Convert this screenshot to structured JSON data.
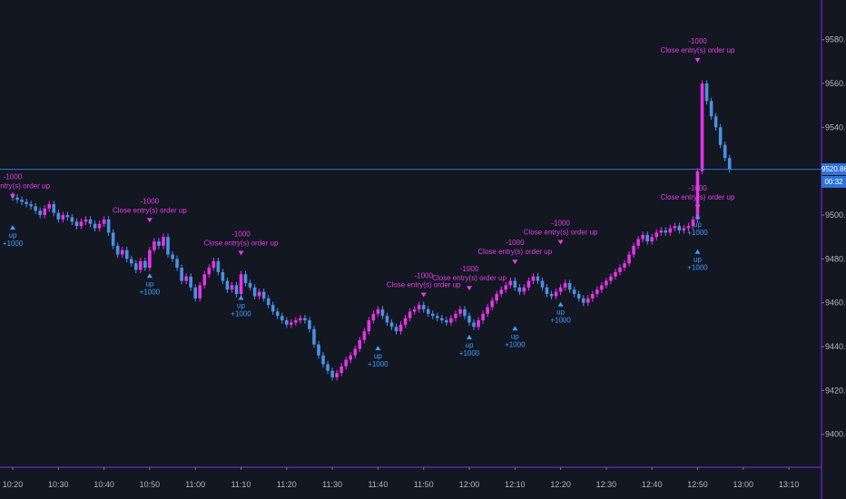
{
  "colors": {
    "background": "#131722",
    "candle_up": "#e633e6",
    "candle_down": "#4a90e2",
    "last_price_line": "#2e73d8",
    "axis_line": "#8a2be2",
    "long_label": "#3aa0ff",
    "short_label": "#e040e0",
    "arrow_orange": "#c7791a",
    "arrow_green": "#2a8a4a",
    "dot_purple": "#a52a8a"
  },
  "last_price": {
    "label": "9520.86",
    "countdown": "00:32",
    "value": 9520.86
  },
  "chart_data": {
    "type": "candlestick",
    "title": "",
    "xlabel": "",
    "ylabel": "",
    "ylim": [
      9385,
      9596
    ],
    "grid": false,
    "y_ticks": [
      {
        "value": 9580,
        "label": "9580.00"
      },
      {
        "value": 9560,
        "label": "9560.00"
      },
      {
        "value": 9540,
        "label": "9540.00"
      },
      {
        "value": 9500,
        "label": "9500.00"
      },
      {
        "value": 9480,
        "label": "9480.00"
      },
      {
        "value": 9460,
        "label": "9460.00"
      },
      {
        "value": 9440,
        "label": "9440.00"
      },
      {
        "value": 9420,
        "label": "9420.00"
      },
      {
        "value": 9400,
        "label": "9400.00"
      }
    ],
    "x_ticks": [
      {
        "value": 0,
        "label": "10:20"
      },
      {
        "value": 10,
        "label": "10:30"
      },
      {
        "value": 20,
        "label": "10:40"
      },
      {
        "value": 30,
        "label": "10:50"
      },
      {
        "value": 40,
        "label": "11:00"
      },
      {
        "value": 50,
        "label": "11:10"
      },
      {
        "value": 60,
        "label": "11:20"
      },
      {
        "value": 70,
        "label": "11:30"
      },
      {
        "value": 80,
        "label": "11:40"
      },
      {
        "value": 90,
        "label": "11:50"
      },
      {
        "value": 100,
        "label": "12:00"
      },
      {
        "value": 110,
        "label": "12:10"
      },
      {
        "value": 120,
        "label": "12:20"
      },
      {
        "value": 130,
        "label": "12:30"
      },
      {
        "value": 140,
        "label": "12:40"
      },
      {
        "value": 150,
        "label": "12:50"
      },
      {
        "value": 160,
        "label": "13:00"
      },
      {
        "value": 170,
        "label": "13:10"
      }
    ],
    "close_series": [
      9508,
      9507,
      9506,
      9505,
      9504,
      9502,
      9500,
      9503,
      9505,
      9501,
      9498,
      9500,
      9499,
      9497,
      9495,
      9497,
      9498,
      9496,
      9494,
      9496,
      9498,
      9492,
      9486,
      9482,
      9484,
      9480,
      9478,
      9475,
      9479,
      9476,
      9484,
      9488,
      9486,
      9490,
      9482,
      9480,
      9476,
      9470,
      9472,
      9467,
      9462,
      9468,
      9473,
      9476,
      9479,
      9474,
      9470,
      9466,
      9468,
      9464,
      9473,
      9469,
      9467,
      9463,
      9465,
      9462,
      9459,
      9456,
      9454,
      9452,
      9450,
      9451,
      9452,
      9453,
      9452,
      9448,
      9441,
      9436,
      9432,
      9429,
      9426,
      9428,
      9431,
      9434,
      9436,
      9439,
      9443,
      9447,
      9452,
      9455,
      9457,
      9454,
      9451,
      9449,
      9447,
      9450,
      9453,
      9456,
      9457,
      9459,
      9457,
      9455,
      9454,
      9453,
      9452,
      9451,
      9453,
      9455,
      9457,
      9454,
      9451,
      9449,
      9452,
      9455,
      9458,
      9461,
      9464,
      9466,
      9468,
      9470,
      9467,
      9465,
      9467,
      9470,
      9472,
      9470,
      9467,
      9464,
      9463,
      9465,
      9467,
      9469,
      9466,
      9464,
      9462,
      9460,
      9462,
      9464,
      9466,
      9468,
      9470,
      9472,
      9474,
      9476,
      9478,
      9482,
      9486,
      9489,
      9491,
      9488,
      9490,
      9492,
      9493,
      9492,
      9494,
      9495,
      9493,
      9494,
      9495,
      9498,
      9520,
      9560,
      9552,
      9545,
      9540,
      9532,
      9526,
      9520.86
    ],
    "annotations": [
      {
        "type": "close_order",
        "x_label": "10:20",
        "price": 9508,
        "size": "-1000",
        "text": "Close entry(s) order up"
      },
      {
        "type": "long_entry",
        "x_label": "10:20",
        "price": 9495,
        "text": "up",
        "size": "+1000"
      },
      {
        "type": "close_order",
        "x_label": "10:50",
        "price": 9497,
        "size": "-1000",
        "text": "Close entry(s) order up"
      },
      {
        "type": "long_entry",
        "x_label": "10:50",
        "price": 9473,
        "text": "up",
        "size": "+1000"
      },
      {
        "type": "close_order",
        "x_label": "11:10",
        "price": 9482,
        "size": "-1000",
        "text": "Close entry(s) order up"
      },
      {
        "type": "long_entry",
        "x_label": "11:10",
        "price": 9463,
        "text": "up",
        "size": "+1000"
      },
      {
        "type": "close_order",
        "x_label": "11:50",
        "price": 9463,
        "size": "-1000",
        "text": "Close entry(s) order up"
      },
      {
        "type": "long_entry",
        "x_label": "11:40",
        "price": 9440,
        "text": "up",
        "size": "+1000"
      },
      {
        "type": "close_order",
        "x_label": "12:00",
        "price": 9466,
        "size": "-1000",
        "text": "Close entry(s) order up"
      },
      {
        "type": "long_entry",
        "x_label": "12:00",
        "price": 9445,
        "text": "up",
        "size": "+1000"
      },
      {
        "type": "close_order",
        "x_label": "12:10",
        "price": 9478,
        "size": "-1000",
        "text": "Close entry(s) order up"
      },
      {
        "type": "long_entry",
        "x_label": "12:10",
        "price": 9449,
        "text": "up",
        "size": "+1000"
      },
      {
        "type": "close_order",
        "x_label": "12:20",
        "price": 9487,
        "size": "-1000",
        "text": "Close entry(s) order up"
      },
      {
        "type": "long_entry",
        "x_label": "12:20",
        "price": 9460,
        "text": "up",
        "size": "+1000"
      },
      {
        "type": "close_order",
        "x_label": "12:50",
        "price": 9503,
        "size": "-1000",
        "text": "Close entry(s) order up"
      },
      {
        "type": "long_entry",
        "x_label": "12:50",
        "price": 9484,
        "text": "up",
        "size": "+1000"
      },
      {
        "type": "close_order",
        "x_label": "12:50",
        "price": 9570,
        "size": "-1000",
        "text": "Close entry(s) order up"
      },
      {
        "type": "long_entry",
        "x_label": "12:50",
        "price": 9500,
        "text": "up",
        "size": "+1000"
      }
    ]
  }
}
